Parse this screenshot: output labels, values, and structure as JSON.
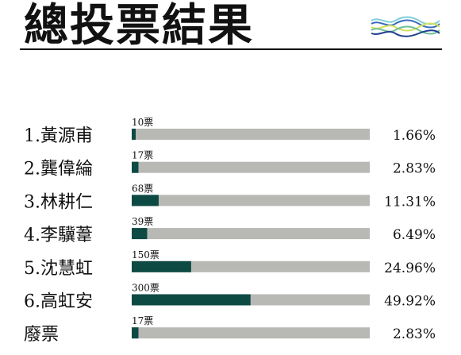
{
  "page": {
    "title": "總投票結果"
  },
  "colors": {
    "bar_fill": "#0d4a44",
    "bar_track": "#b8b8b4",
    "text": "#111111",
    "deco": [
      "#7fd0d6",
      "#3a6bbf",
      "#d6e15a",
      "#6fbf9a",
      "#1f3f8f"
    ]
  },
  "chart_data": {
    "type": "bar",
    "orientation": "horizontal",
    "categories": [
      "1.黃源甫",
      "2.龔偉綸",
      "3.林耕仁",
      "4.李驥葦",
      "5.沈慧虹",
      "6.高虹安",
      "廢票"
    ],
    "values": [
      10,
      17,
      68,
      39,
      150,
      300,
      17
    ],
    "value_labels": [
      "10票",
      "17票",
      "68票",
      "39票",
      "150票",
      "300票",
      "17票"
    ],
    "percent_labels": [
      "1.66%",
      "2.83%",
      "11.31%",
      "6.49%",
      "24.96%",
      "49.92%",
      "2.83%"
    ],
    "xlim": [
      0,
      601
    ],
    "grid": false
  }
}
